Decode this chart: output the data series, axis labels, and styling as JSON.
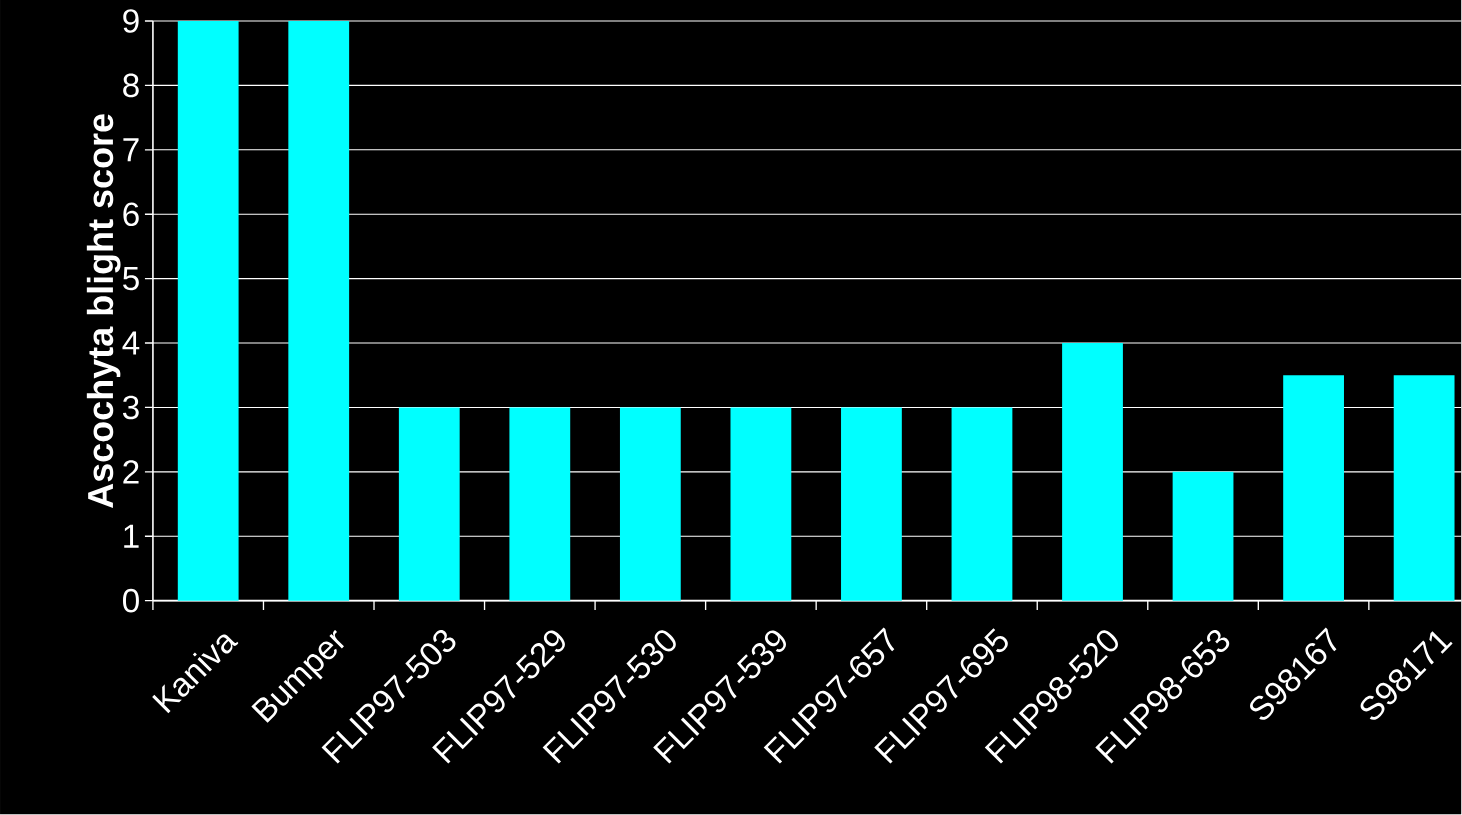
{
  "chart_data": {
    "type": "bar",
    "ylabel": "Ascochyta blight score",
    "categories": [
      "Kaniva",
      "Bumper",
      "FLIP97-503",
      "FLIP97-529",
      "FLIP97-530",
      "FLIP97-539",
      "FLIP97-657",
      "FLIP97-695",
      "FLIP98-520",
      "FLIP98-653",
      "S98167",
      "S98171"
    ],
    "values": [
      9,
      9,
      3,
      3,
      3,
      3,
      3,
      3,
      4,
      2,
      3.5,
      3.5
    ],
    "color": "#00ffff",
    "ylim": [
      0,
      9
    ],
    "yticks": [
      0,
      1,
      2,
      3,
      4,
      5,
      6,
      7,
      8,
      9
    ],
    "grid": "y"
  }
}
